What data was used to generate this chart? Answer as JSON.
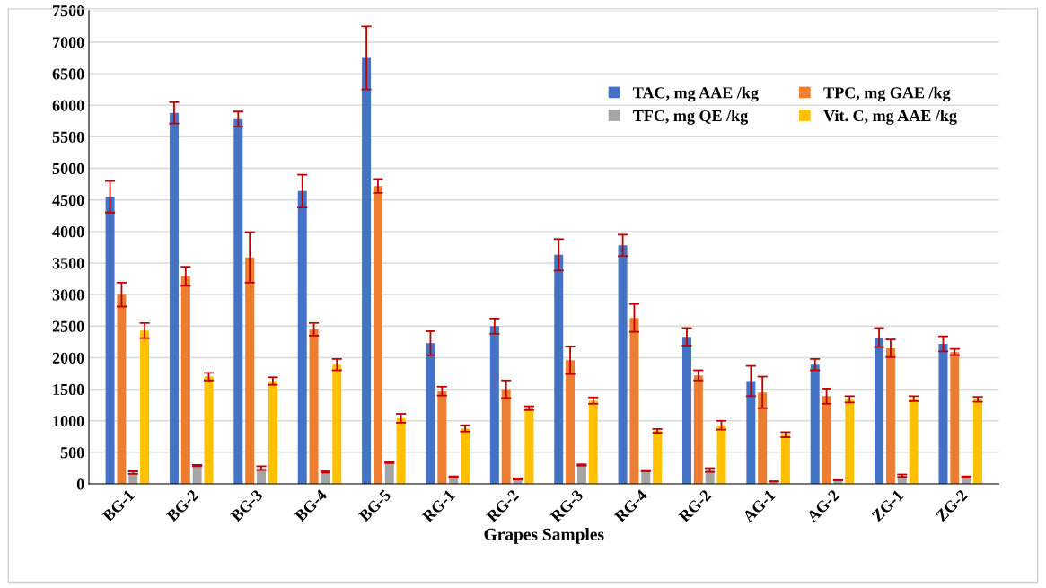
{
  "chart_data": {
    "type": "bar",
    "xlabel": "Grapes Samples",
    "categories": [
      "BG-1",
      "BG-2",
      "BG-3",
      "BG-4",
      "BG-5",
      "RG-1",
      "RG-2",
      "RG-3",
      "RG-4",
      "RG-2",
      "AG-1",
      "AG-2",
      "ZG-1",
      "ZG-2"
    ],
    "series": [
      {
        "name": "TAC, mg AAE /kg",
        "color": "#4472c4",
        "values": [
          4550,
          5880,
          5780,
          4640,
          6750,
          2230,
          2500,
          3630,
          3780,
          2330,
          1630,
          1890,
          2320,
          2220
        ],
        "errors": [
          250,
          170,
          120,
          260,
          500,
          190,
          120,
          250,
          170,
          140,
          240,
          90,
          150,
          120
        ]
      },
      {
        "name": "TPC, mg GAE /kg",
        "color": "#ed7d31",
        "values": [
          3000,
          3290,
          3590,
          2450,
          4720,
          1470,
          1500,
          1960,
          2630,
          1720,
          1450,
          1390,
          2150,
          2090
        ],
        "errors": [
          190,
          150,
          400,
          100,
          110,
          70,
          140,
          220,
          220,
          80,
          250,
          120,
          140,
          50
        ]
      },
      {
        "name": "TFC, mg QE /kg",
        "color": "#a5a5a5",
        "values": [
          180,
          290,
          250,
          190,
          340,
          110,
          80,
          300,
          210,
          220,
          40,
          60,
          130,
          110
        ],
        "errors": [
          20,
          10,
          30,
          10,
          10,
          10,
          10,
          10,
          10,
          30,
          null,
          null,
          20,
          10
        ]
      },
      {
        "name": "Vit. C, mg AAE /kg",
        "color": "#ffc000",
        "values": [
          2430,
          1700,
          1630,
          1890,
          1040,
          880,
          1200,
          1320,
          840,
          930,
          780,
          1340,
          1350,
          1340
        ],
        "errors": [
          120,
          60,
          60,
          90,
          70,
          50,
          30,
          50,
          30,
          70,
          40,
          50,
          40,
          40
        ]
      }
    ],
    "ylim": [
      0,
      7500
    ],
    "yticks": [
      0,
      500,
      1000,
      1500,
      2000,
      2500,
      3000,
      3500,
      4000,
      4500,
      5000,
      5500,
      6000,
      6500,
      7000,
      7500
    ],
    "grid": "y",
    "legend": "top right"
  }
}
